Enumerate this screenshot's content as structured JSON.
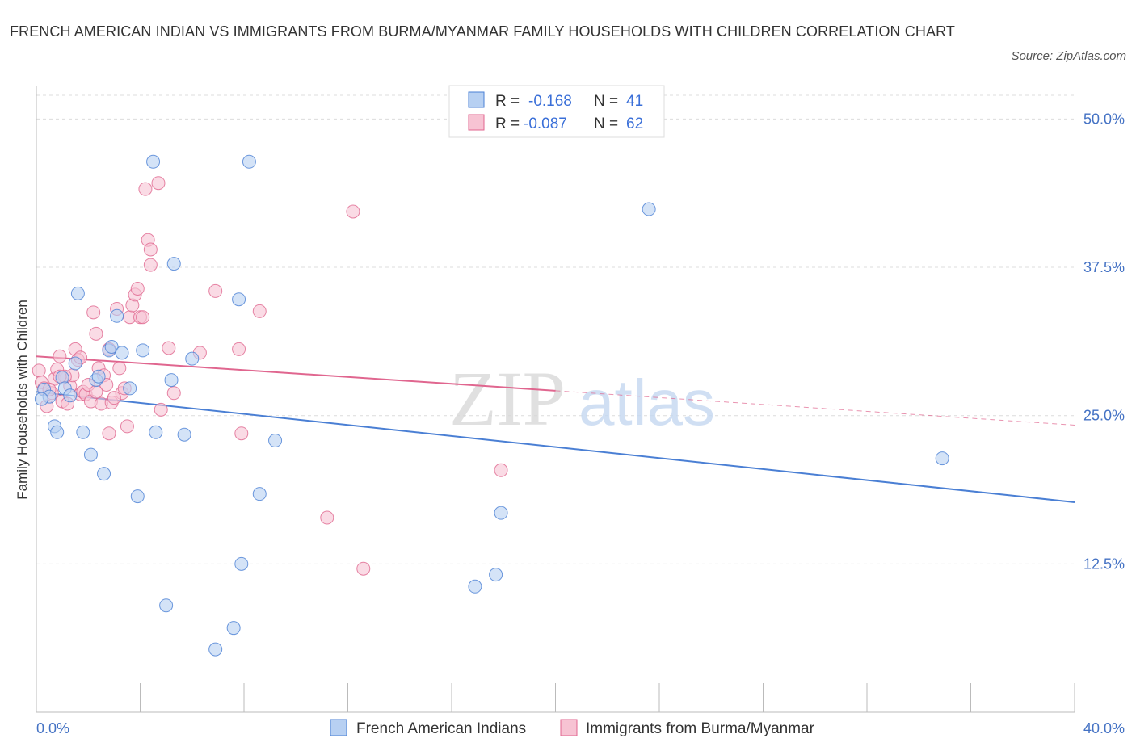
{
  "title": "FRENCH AMERICAN INDIAN VS IMMIGRANTS FROM BURMA/MYANMAR FAMILY HOUSEHOLDS WITH CHILDREN CORRELATION CHART",
  "source": "Source: ZipAtlas.com",
  "watermark": {
    "zip": "ZIP",
    "atlas": "atlas"
  },
  "colors": {
    "blue": "#4a7fd4",
    "blue_fill": "#b7d0f2",
    "pink": "#e0668f",
    "pink_fill": "#f7c3d3",
    "tick": "#4472c4"
  },
  "legend": {
    "rows": [
      {
        "r_label": "R =",
        "r_value": "-0.168",
        "n_label": "N =",
        "n_value": "41"
      },
      {
        "r_label": "R =",
        "r_value": "-0.087",
        "n_label": "N =",
        "n_value": "62"
      }
    ]
  },
  "chart_data": {
    "type": "scatter",
    "title": "FRENCH AMERICAN INDIAN VS IMMIGRANTS FROM BURMA/MYANMAR FAMILY HOUSEHOLDS WITH CHILDREN CORRELATION CHART",
    "xlabel": "",
    "ylabel": "Family Households with Children",
    "xlim": [
      0,
      40
    ],
    "ylim": [
      0,
      52
    ],
    "x_tick_labels": [
      "0.0%",
      "40.0%"
    ],
    "y_ticks": [
      12.5,
      25.0,
      37.5,
      50.0
    ],
    "y_tick_labels": [
      "12.5%",
      "25.0%",
      "37.5%",
      "50.0%"
    ],
    "grid": true,
    "legend_position": "bottom",
    "series": [
      {
        "name": "French American Indians",
        "color": "#4a7fd4",
        "r": -0.168,
        "n": 41,
        "trend": {
          "x": [
            0,
            40
          ],
          "y": [
            27.0,
            17.7
          ]
        },
        "points": [
          [
            0.3,
            27.2
          ],
          [
            0.5,
            26.6
          ],
          [
            0.7,
            24.1
          ],
          [
            0.8,
            23.6
          ],
          [
            1.0,
            28.2
          ],
          [
            1.1,
            27.3
          ],
          [
            1.3,
            26.7
          ],
          [
            1.5,
            29.4
          ],
          [
            1.6,
            35.3
          ],
          [
            1.8,
            23.6
          ],
          [
            2.1,
            21.7
          ],
          [
            2.3,
            28.0
          ],
          [
            2.4,
            28.3
          ],
          [
            2.6,
            20.1
          ],
          [
            2.8,
            30.5
          ],
          [
            2.9,
            30.8
          ],
          [
            3.1,
            33.4
          ],
          [
            3.3,
            30.3
          ],
          [
            3.6,
            27.3
          ],
          [
            3.9,
            18.2
          ],
          [
            4.1,
            30.5
          ],
          [
            4.5,
            46.4
          ],
          [
            4.6,
            23.6
          ],
          [
            5.0,
            9.0
          ],
          [
            5.2,
            28.0
          ],
          [
            5.3,
            37.8
          ],
          [
            5.7,
            23.4
          ],
          [
            6.0,
            29.8
          ],
          [
            6.9,
            5.3
          ],
          [
            7.6,
            7.1
          ],
          [
            7.8,
            34.8
          ],
          [
            7.9,
            12.5
          ],
          [
            8.2,
            46.4
          ],
          [
            8.6,
            18.4
          ],
          [
            9.2,
            22.9
          ],
          [
            16.9,
            10.6
          ],
          [
            17.7,
            11.6
          ],
          [
            17.9,
            16.8
          ],
          [
            23.6,
            42.4
          ],
          [
            34.9,
            21.4
          ],
          [
            0.2,
            26.4
          ]
        ]
      },
      {
        "name": "Immigrants from Burma/Myanmar",
        "color": "#e0668f",
        "r": -0.087,
        "n": 62,
        "trend": {
          "x": [
            0,
            20
          ],
          "y": [
            30.0,
            27.1
          ]
        },
        "trend_dashed": {
          "x": [
            20,
            40
          ],
          "y": [
            27.1,
            24.2
          ]
        },
        "points": [
          [
            0.1,
            28.8
          ],
          [
            0.2,
            27.8
          ],
          [
            0.3,
            27.3
          ],
          [
            0.4,
            25.8
          ],
          [
            0.6,
            26.9
          ],
          [
            0.7,
            28.1
          ],
          [
            0.8,
            28.9
          ],
          [
            0.9,
            30.0
          ],
          [
            1.0,
            26.2
          ],
          [
            1.2,
            26.0
          ],
          [
            1.3,
            27.5
          ],
          [
            1.4,
            28.4
          ],
          [
            1.5,
            30.6
          ],
          [
            1.6,
            29.7
          ],
          [
            1.7,
            26.8
          ],
          [
            1.8,
            27.0
          ],
          [
            1.9,
            26.8
          ],
          [
            2.0,
            27.6
          ],
          [
            2.1,
            26.2
          ],
          [
            2.2,
            33.7
          ],
          [
            2.3,
            31.9
          ],
          [
            2.4,
            29.0
          ],
          [
            2.5,
            26.0
          ],
          [
            2.6,
            28.4
          ],
          [
            2.7,
            27.6
          ],
          [
            2.8,
            30.6
          ],
          [
            2.9,
            26.1
          ],
          [
            2.8,
            23.5
          ],
          [
            3.1,
            34.0
          ],
          [
            3.2,
            29.0
          ],
          [
            3.3,
            26.9
          ],
          [
            3.4,
            27.3
          ],
          [
            3.5,
            24.1
          ],
          [
            3.6,
            33.3
          ],
          [
            3.7,
            34.3
          ],
          [
            3.8,
            35.2
          ],
          [
            3.9,
            35.7
          ],
          [
            4.0,
            33.3
          ],
          [
            4.1,
            33.3
          ],
          [
            4.2,
            44.1
          ],
          [
            4.3,
            39.8
          ],
          [
            4.4,
            37.7
          ],
          [
            4.4,
            39.0
          ],
          [
            4.7,
            44.6
          ],
          [
            4.8,
            25.5
          ],
          [
            5.1,
            30.7
          ],
          [
            5.3,
            26.9
          ],
          [
            6.3,
            30.3
          ],
          [
            6.9,
            35.5
          ],
          [
            7.8,
            30.6
          ],
          [
            7.9,
            23.5
          ],
          [
            8.6,
            33.8
          ],
          [
            11.2,
            16.4
          ],
          [
            12.2,
            42.2
          ],
          [
            12.6,
            12.1
          ],
          [
            17.9,
            20.4
          ],
          [
            0.5,
            27.2
          ],
          [
            1.1,
            28.3
          ],
          [
            2.3,
            27.0
          ],
          [
            3.0,
            26.5
          ],
          [
            1.7,
            29.9
          ],
          [
            0.9,
            28.3
          ]
        ]
      }
    ]
  }
}
